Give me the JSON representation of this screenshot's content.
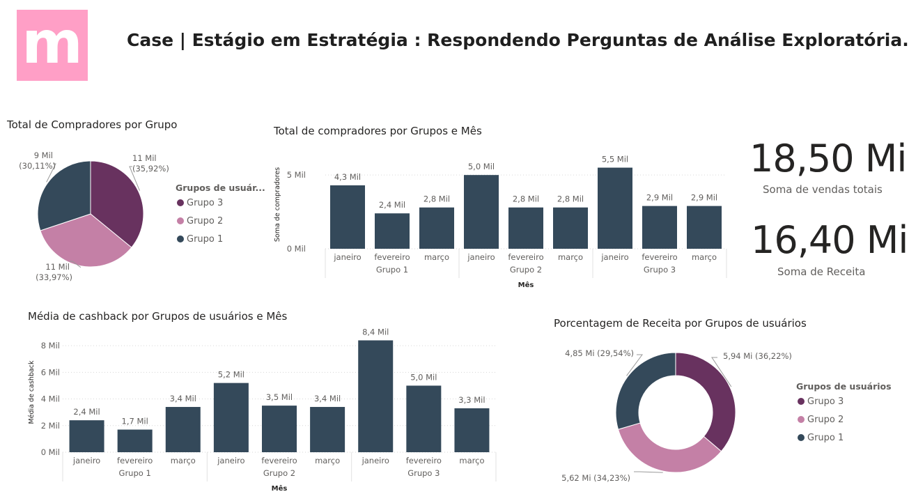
{
  "header": {
    "logo_letter": "m",
    "title": "Case | Estágio em Estratégia : Respondendo Perguntas de Análise Exploratória."
  },
  "colors": {
    "grupo3": "#68325f",
    "grupo2": "#c480a6",
    "grupo1": "#34495a",
    "bar": "#34495a",
    "logo_bg": "#ff9fc6"
  },
  "kpis": [
    {
      "value": "18,50 Mi",
      "label": "Soma de vendas totais"
    },
    {
      "value": "16,40 Mi",
      "label": "Soma de Receita"
    }
  ],
  "chart_data": [
    {
      "type": "pie",
      "title": "Total de Compradores por Grupo",
      "legend_title": "Grupos de usuár...",
      "labels": [
        "Grupo 3",
        "Grupo 2",
        "Grupo 1"
      ],
      "values": [
        11000,
        11000,
        9000
      ],
      "percent": [
        35.92,
        33.97,
        30.11
      ],
      "data_labels": [
        {
          "value": "11 Mil",
          "pct": "(35,92%)"
        },
        {
          "value": "11 Mil",
          "pct": "(33,97%)"
        },
        {
          "value": "9 Mil",
          "pct": "(30,11%)"
        }
      ],
      "legend_position": "right"
    },
    {
      "type": "bar",
      "title": "Total de compradores por Grupos e Mês",
      "xlabel": "Mês",
      "ylabel": "Soma de compradores",
      "ylim": [
        0,
        6000
      ],
      "yticks": [
        {
          "v": 0,
          "label": "0 Mil"
        },
        {
          "v": 5000,
          "label": "5 Mil"
        }
      ],
      "groups": [
        "Grupo 1",
        "Grupo 2",
        "Grupo 3"
      ],
      "categories": [
        "janeiro",
        "fevereiro",
        "março",
        "janeiro",
        "fevereiro",
        "março",
        "janeiro",
        "fevereiro",
        "março"
      ],
      "values": [
        4300,
        2400,
        2800,
        5000,
        2800,
        2800,
        5500,
        2900,
        2900
      ],
      "data_labels": [
        "4,3 Mil",
        "2,4 Mil",
        "2,8 Mil",
        "5,0 Mil",
        "2,8 Mil",
        "2,8 Mil",
        "5,5 Mil",
        "2,9 Mil",
        "2,9 Mil"
      ],
      "grid": true
    },
    {
      "type": "bar",
      "title": "Média de cashback por Grupos de usuários e Mês",
      "xlabel": "Mês",
      "ylabel": "Média de cashback",
      "ylim": [
        0,
        9000
      ],
      "yticks": [
        {
          "v": 0,
          "label": "0 Mil"
        },
        {
          "v": 2000,
          "label": "2 Mil"
        },
        {
          "v": 4000,
          "label": "4 Mil"
        },
        {
          "v": 6000,
          "label": "6 Mil"
        },
        {
          "v": 8000,
          "label": "8 Mil"
        }
      ],
      "groups": [
        "Grupo 1",
        "Grupo 2",
        "Grupo 3"
      ],
      "categories": [
        "janeiro",
        "fevereiro",
        "março",
        "janeiro",
        "fevereiro",
        "março",
        "janeiro",
        "fevereiro",
        "março"
      ],
      "values": [
        2400,
        1700,
        3400,
        5200,
        3500,
        3400,
        8400,
        5000,
        3300
      ],
      "data_labels": [
        "2,4 Mil",
        "1,7 Mil",
        "3,4 Mil",
        "5,2 Mil",
        "3,5 Mil",
        "3,4 Mil",
        "8,4 Mil",
        "5,0 Mil",
        "3,3 Mil"
      ],
      "grid": true
    },
    {
      "type": "pie",
      "subtype": "donut",
      "title": "Porcentagem de Receita por Grupos de usuários",
      "legend_title": "Grupos de usuários",
      "labels": [
        "Grupo 3",
        "Grupo 2",
        "Grupo 1"
      ],
      "values": [
        5.94,
        5.62,
        4.85
      ],
      "percent": [
        36.22,
        34.23,
        29.54
      ],
      "data_labels": [
        "5,94 Mi (36,22%)",
        "5,62 Mi (34,23%)",
        "4,85 Mi (29,54%)"
      ],
      "legend_position": "right"
    }
  ]
}
